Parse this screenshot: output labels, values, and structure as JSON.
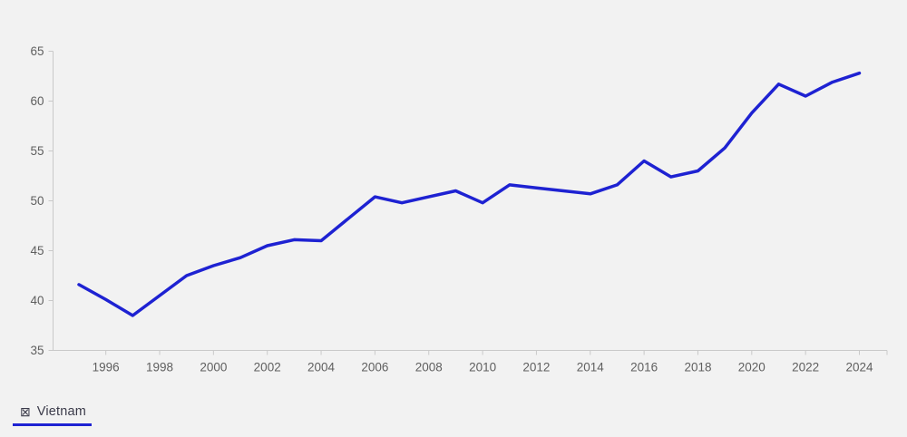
{
  "page": {
    "background": "#f2f2f2"
  },
  "chart_data": {
    "type": "line",
    "title": "",
    "xlabel": "",
    "ylabel": "",
    "x": [
      1995,
      1996,
      1997,
      1998,
      1999,
      2000,
      2001,
      2002,
      2003,
      2004,
      2005,
      2006,
      2007,
      2008,
      2009,
      2010,
      2011,
      2012,
      2013,
      2014,
      2015,
      2016,
      2017,
      2018,
      2019,
      2020,
      2021,
      2022,
      2023,
      2024
    ],
    "series": [
      {
        "name": "Vietnam",
        "color": "#1E22D2",
        "values": [
          41.6,
          40.1,
          38.5,
          40.5,
          42.5,
          43.5,
          44.3,
          45.5,
          46.1,
          46.0,
          48.2,
          50.4,
          49.8,
          50.4,
          51.0,
          49.8,
          51.6,
          51.3,
          51.0,
          50.7,
          51.6,
          54.0,
          52.4,
          53.0,
          55.3,
          58.8,
          61.7,
          60.5,
          61.9,
          62.8
        ]
      }
    ],
    "xlim": [
      1995,
      2024
    ],
    "ylim": [
      35,
      65
    ],
    "xticks": [
      1996,
      1998,
      2000,
      2002,
      2004,
      2006,
      2008,
      2010,
      2012,
      2014,
      2016,
      2018,
      2020,
      2022,
      2024
    ],
    "yticks": [
      35,
      40,
      45,
      50,
      55,
      60,
      65
    ],
    "grid": false,
    "legend_position": "bottom-left",
    "axis_color": "#c9c9c9",
    "tick_label_color": "#5f5f5f"
  },
  "legend": {
    "icon_glyph": "⊠",
    "label": "Vietnam"
  }
}
